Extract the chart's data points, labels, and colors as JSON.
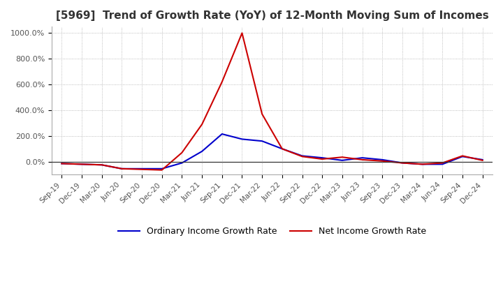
{
  "title": "[5969]  Trend of Growth Rate (YoY) of 12-Month Moving Sum of Incomes",
  "title_fontsize": 11,
  "background_color": "#ffffff",
  "grid_color": "#aaaaaa",
  "ylim": [
    -100,
    1050
  ],
  "yticks": [
    0,
    200,
    400,
    600,
    800,
    1000
  ],
  "ytick_labels": [
    "0.0%",
    "200.0%",
    "400.0%",
    "600.0%",
    "800.0%",
    "1000.0%"
  ],
  "x_labels": [
    "Sep-19",
    "Dec-19",
    "Mar-20",
    "Jun-20",
    "Sep-20",
    "Dec-20",
    "Mar-21",
    "Jun-21",
    "Sep-21",
    "Dec-21",
    "Mar-22",
    "Jun-22",
    "Sep-22",
    "Dec-22",
    "Mar-23",
    "Jun-23",
    "Sep-23",
    "Dec-23",
    "Mar-24",
    "Jun-24",
    "Sep-24",
    "Dec-24"
  ],
  "ordinary_income": [
    -15,
    -20,
    -25,
    -55,
    -55,
    -55,
    -10,
    80,
    215,
    175,
    160,
    100,
    45,
    30,
    10,
    30,
    15,
    -10,
    -20,
    -20,
    40,
    15
  ],
  "net_income": [
    -15,
    -20,
    -25,
    -55,
    -60,
    -65,
    70,
    290,
    620,
    1000,
    370,
    100,
    40,
    20,
    35,
    15,
    5,
    -10,
    -20,
    -10,
    45,
    10
  ],
  "ordinary_color": "#0000cc",
  "net_color": "#cc0000",
  "line_width": 1.5,
  "legend_labels": [
    "Ordinary Income Growth Rate",
    "Net Income Growth Rate"
  ],
  "legend_fontsize": 9,
  "tick_fontsize": 8,
  "title_color": "#333333"
}
